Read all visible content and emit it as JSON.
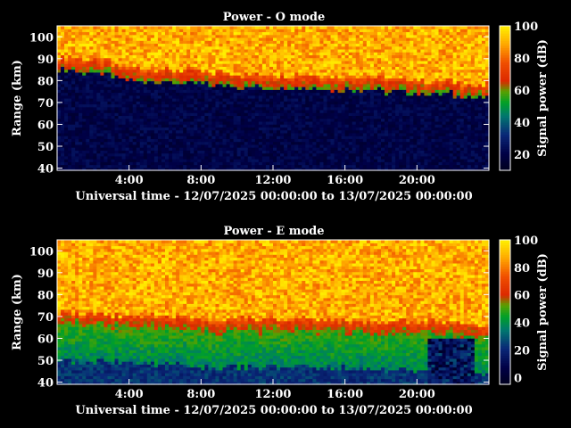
{
  "chart_data": [
    {
      "type": "heatmap",
      "title": "Power - O mode",
      "xlabel": "Universal time - 12/07/2025 00:00:00 to 13/07/2025 00:00:00",
      "ylabel": "Range (km)",
      "x_ticks": [
        "4:00",
        "8:00",
        "12:00",
        "16:00",
        "20:00"
      ],
      "y_ticks": [
        40,
        50,
        60,
        70,
        80,
        90,
        100
      ],
      "xlim_hours": [
        0,
        24
      ],
      "ylim_km": [
        39,
        105
      ],
      "colorbar": {
        "label": "Signal power (dB)",
        "ticks": [
          20,
          40,
          60,
          80,
          100
        ],
        "range": [
          10,
          100
        ]
      },
      "bottom_km": [
        85,
        84,
        83,
        81,
        80,
        80,
        79,
        79,
        78,
        78,
        77,
        77,
        77,
        77,
        77,
        76,
        76,
        76,
        75,
        75,
        74,
        74,
        73,
        72,
        71
      ],
      "features": [
        {
          "description": "saturated echoes above ~88 km",
          "x_hours": [
            0,
            23.5
          ],
          "y_km": [
            88,
            105
          ],
          "power_db": 80
        },
        {
          "description": "weak noise region below echo base",
          "x_hours": [
            0,
            23.5
          ],
          "y_km": [
            39,
            70
          ],
          "power_db": 15
        }
      ]
    },
    {
      "type": "heatmap",
      "title": "Power - E mode",
      "xlabel": "Universal time - 12/07/2025 00:00:00 to 13/07/2025 00:00:00",
      "ylabel": "Range (km)",
      "x_ticks": [
        "4:00",
        "8:00",
        "12:00",
        "16:00",
        "20:00"
      ],
      "y_ticks": [
        40,
        50,
        60,
        70,
        80,
        90,
        100
      ],
      "xlim_hours": [
        0,
        24
      ],
      "ylim_km": [
        39,
        105
      ],
      "colorbar": {
        "label": "Signal power (dB)",
        "ticks": [
          0,
          20,
          40,
          60,
          80,
          100
        ],
        "range": [
          -5,
          100
        ]
      },
      "bottom_km": [
        66,
        66,
        65,
        65,
        64,
        64,
        64,
        64,
        63,
        63,
        63,
        63,
        63,
        63,
        63,
        63,
        62,
        62,
        62,
        62,
        62,
        61,
        61,
        60,
        60
      ],
      "features": [
        {
          "description": "saturated echoes above ~88 km",
          "x_hours": [
            0,
            23.5
          ],
          "y_km": [
            88,
            105
          ],
          "power_db": 80
        },
        {
          "description": "green 40-50 dB layer",
          "x_hours": [
            0,
            23.5
          ],
          "y_km": [
            62,
            80
          ],
          "power_db": 45
        },
        {
          "description": "dark noise floor patch",
          "x_hours": [
            20.5,
            23.2
          ],
          "y_km": [
            39,
            60
          ],
          "power_db": -5
        }
      ]
    }
  ]
}
